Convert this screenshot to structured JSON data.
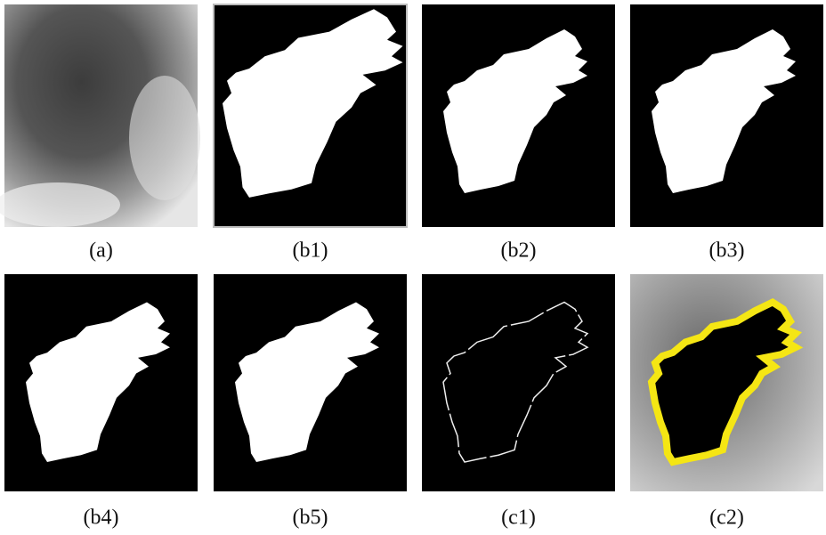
{
  "panels": [
    {
      "label": "(a)"
    },
    {
      "label": "(b1)"
    },
    {
      "label": "(b2)"
    },
    {
      "label": "(b3)"
    },
    {
      "label": "(b4)"
    },
    {
      "label": "(b5)"
    },
    {
      "label": "(c1)"
    },
    {
      "label": "(c2)"
    }
  ]
}
